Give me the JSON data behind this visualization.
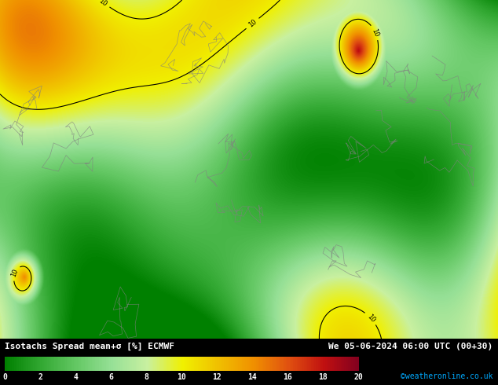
{
  "title_left": "Isotachs Spread mean+σ [%] ECMWF",
  "title_right": "We 05-06-2024 06:00 UTC (00+30)",
  "credit": "©weatheronline.co.uk",
  "colorbar_values": [
    0,
    2,
    4,
    6,
    8,
    10,
    12,
    14,
    16,
    18,
    20
  ],
  "colorbar_colors": [
    "#008000",
    "#32a832",
    "#64c864",
    "#96e096",
    "#c8f0a0",
    "#f0f000",
    "#f0c000",
    "#f09000",
    "#e05010",
    "#c01010",
    "#800020"
  ],
  "background_color": "#000000",
  "map_bg_color": "#7ec850",
  "fig_width": 6.34,
  "fig_height": 4.9,
  "dpi": 100,
  "colorbar_label_color": "#ffffff",
  "text_color": "#ffffff",
  "credit_color": "#00aaff",
  "font_size_title": 8,
  "font_size_credit": 7,
  "font_size_cb": 7
}
